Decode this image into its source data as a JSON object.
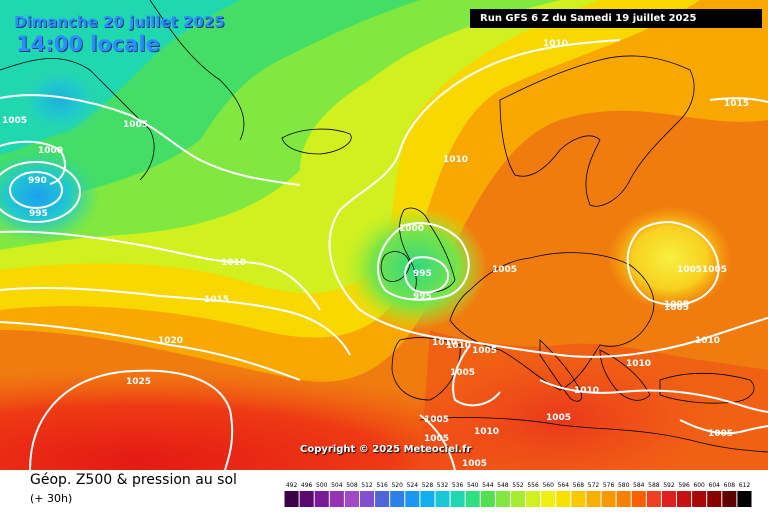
{
  "header": {
    "date": "Dimanche 20 juillet 2025",
    "time": "14:00 locale",
    "run": "Run GFS 6 Z du Samedi 19 juillet 2025"
  },
  "copyright": "Copyright © 2025 Meteociel.fr",
  "footer": {
    "product": "Géop. Z500 & pression au sol",
    "lead": "(+ 30h)"
  },
  "legend": {
    "ticks": [
      "492",
      "496",
      "500",
      "504",
      "508",
      "512",
      "516",
      "520",
      "524",
      "528",
      "532",
      "536",
      "540",
      "544",
      "548",
      "552",
      "556",
      "560",
      "564",
      "568",
      "572",
      "576",
      "580",
      "584",
      "588",
      "592",
      "596",
      "600",
      "604",
      "608",
      "612"
    ],
    "colors": [
      "#3c0046",
      "#5a0a6e",
      "#7a1a96",
      "#9632b4",
      "#a04ac8",
      "#8050d0",
      "#5064dc",
      "#2c80e8",
      "#1898f0",
      "#10b0f0",
      "#18c8d8",
      "#20d8b0",
      "#30e080",
      "#50e050",
      "#80e840",
      "#a8ec30",
      "#d0f020",
      "#f0f010",
      "#f8e000",
      "#f8c800",
      "#f8b000",
      "#f89800",
      "#f88000",
      "#f86000",
      "#f04020",
      "#e02020",
      "#c81010",
      "#a80808",
      "#880000",
      "#600000",
      "#000000"
    ]
  },
  "isobar_labels": [
    {
      "text": "1010"
    },
    {
      "text": "1015"
    },
    {
      "text": "1005"
    },
    {
      "text": "1005"
    },
    {
      "text": "1000"
    },
    {
      "text": "990"
    },
    {
      "text": "995"
    },
    {
      "text": "1010"
    },
    {
      "text": "1010"
    },
    {
      "text": "1015"
    },
    {
      "text": "1020"
    },
    {
      "text": "1025"
    },
    {
      "text": "1000"
    },
    {
      "text": "995"
    },
    {
      "text": "995"
    },
    {
      "text": "1005"
    },
    {
      "text": "1005"
    },
    {
      "text": "1005"
    },
    {
      "text": "1005"
    },
    {
      "text": "1005"
    },
    {
      "text": "1010"
    },
    {
      "text": "1010"
    },
    {
      "text": "1005"
    },
    {
      "text": "1005"
    },
    {
      "text": "1010"
    },
    {
      "text": "1010"
    },
    {
      "text": "1010"
    },
    {
      "text": "1005"
    },
    {
      "text": "1005"
    },
    {
      "text": "1005"
    },
    {
      "text": "1010"
    },
    {
      "text": "1005"
    },
    {
      "text": "1005"
    }
  ]
}
